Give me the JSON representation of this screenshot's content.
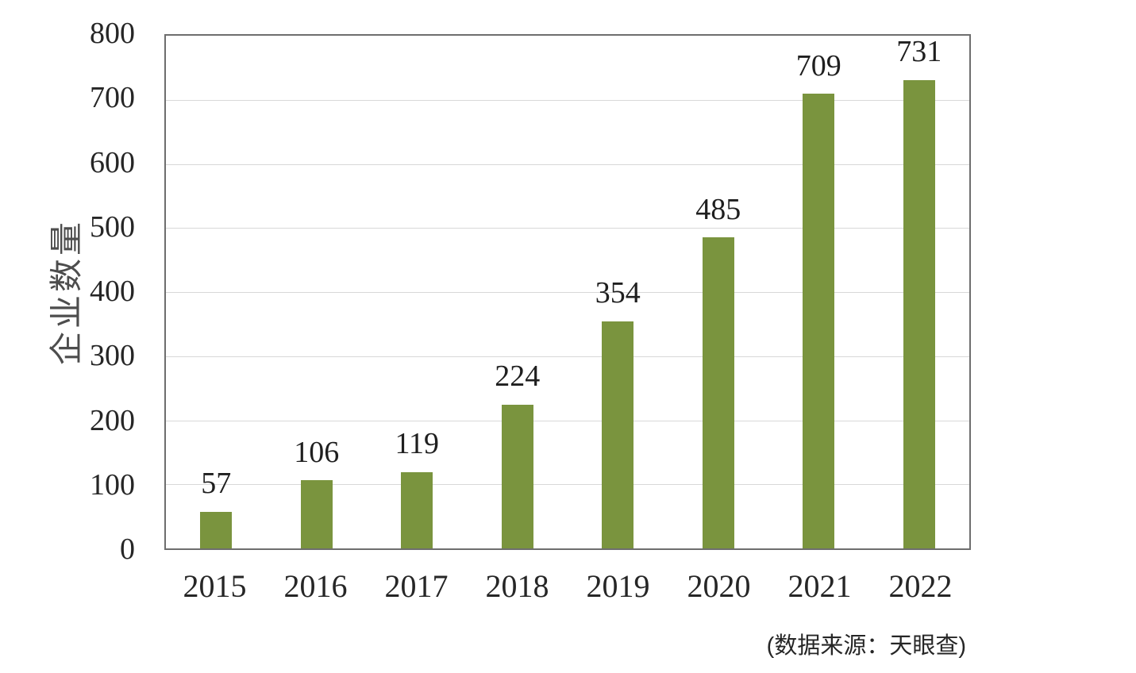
{
  "figure": {
    "source_note": "(数据来源：天眼查)"
  },
  "chart_data": {
    "type": "bar",
    "categories": [
      "2015",
      "2016",
      "2017",
      "2018",
      "2019",
      "2020",
      "2021",
      "2022"
    ],
    "values": [
      57,
      106,
      119,
      224,
      354,
      485,
      709,
      731
    ],
    "title": "",
    "xlabel": "",
    "ylabel": "企业数量",
    "ylim": [
      0,
      800
    ],
    "ytick_step": 100,
    "grid": true,
    "legend": "none",
    "data_labels": true,
    "colors": {
      "bar": "#7a943e",
      "gridline": "#d8d8d8",
      "plot_border": "#6e6e6e",
      "tick_text": "#262626",
      "axis_title_text": "#4d4d4d"
    }
  }
}
